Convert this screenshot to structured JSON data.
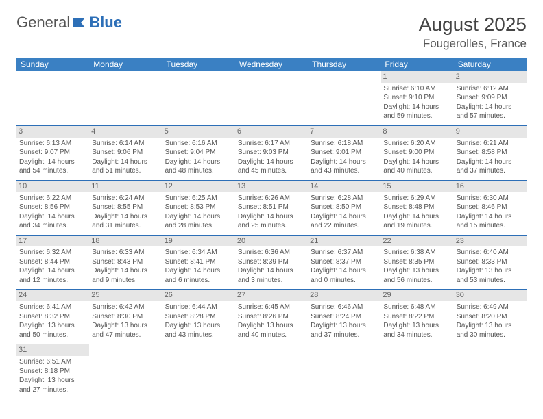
{
  "logo": {
    "part1": "General",
    "part2": "Blue"
  },
  "header": {
    "month": "August 2025",
    "location": "Fougerolles, France"
  },
  "colors": {
    "brand": "#3a80c3",
    "rule": "#2d6fb7",
    "daybg": "#e6e6e6",
    "text": "#555"
  },
  "dayNames": [
    "Sunday",
    "Monday",
    "Tuesday",
    "Wednesday",
    "Thursday",
    "Friday",
    "Saturday"
  ],
  "weeks": [
    [
      {
        "empty": true
      },
      {
        "empty": true
      },
      {
        "empty": true
      },
      {
        "empty": true
      },
      {
        "empty": true
      },
      {
        "day": "1",
        "sunrise": "Sunrise: 6:10 AM",
        "sunset": "Sunset: 9:10 PM",
        "day1": "Daylight: 14 hours",
        "day2": "and 59 minutes."
      },
      {
        "day": "2",
        "sunrise": "Sunrise: 6:12 AM",
        "sunset": "Sunset: 9:09 PM",
        "day1": "Daylight: 14 hours",
        "day2": "and 57 minutes."
      }
    ],
    [
      {
        "day": "3",
        "sunrise": "Sunrise: 6:13 AM",
        "sunset": "Sunset: 9:07 PM",
        "day1": "Daylight: 14 hours",
        "day2": "and 54 minutes."
      },
      {
        "day": "4",
        "sunrise": "Sunrise: 6:14 AM",
        "sunset": "Sunset: 9:06 PM",
        "day1": "Daylight: 14 hours",
        "day2": "and 51 minutes."
      },
      {
        "day": "5",
        "sunrise": "Sunrise: 6:16 AM",
        "sunset": "Sunset: 9:04 PM",
        "day1": "Daylight: 14 hours",
        "day2": "and 48 minutes."
      },
      {
        "day": "6",
        "sunrise": "Sunrise: 6:17 AM",
        "sunset": "Sunset: 9:03 PM",
        "day1": "Daylight: 14 hours",
        "day2": "and 45 minutes."
      },
      {
        "day": "7",
        "sunrise": "Sunrise: 6:18 AM",
        "sunset": "Sunset: 9:01 PM",
        "day1": "Daylight: 14 hours",
        "day2": "and 43 minutes."
      },
      {
        "day": "8",
        "sunrise": "Sunrise: 6:20 AM",
        "sunset": "Sunset: 9:00 PM",
        "day1": "Daylight: 14 hours",
        "day2": "and 40 minutes."
      },
      {
        "day": "9",
        "sunrise": "Sunrise: 6:21 AM",
        "sunset": "Sunset: 8:58 PM",
        "day1": "Daylight: 14 hours",
        "day2": "and 37 minutes."
      }
    ],
    [
      {
        "day": "10",
        "sunrise": "Sunrise: 6:22 AM",
        "sunset": "Sunset: 8:56 PM",
        "day1": "Daylight: 14 hours",
        "day2": "and 34 minutes."
      },
      {
        "day": "11",
        "sunrise": "Sunrise: 6:24 AM",
        "sunset": "Sunset: 8:55 PM",
        "day1": "Daylight: 14 hours",
        "day2": "and 31 minutes."
      },
      {
        "day": "12",
        "sunrise": "Sunrise: 6:25 AM",
        "sunset": "Sunset: 8:53 PM",
        "day1": "Daylight: 14 hours",
        "day2": "and 28 minutes."
      },
      {
        "day": "13",
        "sunrise": "Sunrise: 6:26 AM",
        "sunset": "Sunset: 8:51 PM",
        "day1": "Daylight: 14 hours",
        "day2": "and 25 minutes."
      },
      {
        "day": "14",
        "sunrise": "Sunrise: 6:28 AM",
        "sunset": "Sunset: 8:50 PM",
        "day1": "Daylight: 14 hours",
        "day2": "and 22 minutes."
      },
      {
        "day": "15",
        "sunrise": "Sunrise: 6:29 AM",
        "sunset": "Sunset: 8:48 PM",
        "day1": "Daylight: 14 hours",
        "day2": "and 19 minutes."
      },
      {
        "day": "16",
        "sunrise": "Sunrise: 6:30 AM",
        "sunset": "Sunset: 8:46 PM",
        "day1": "Daylight: 14 hours",
        "day2": "and 15 minutes."
      }
    ],
    [
      {
        "day": "17",
        "sunrise": "Sunrise: 6:32 AM",
        "sunset": "Sunset: 8:44 PM",
        "day1": "Daylight: 14 hours",
        "day2": "and 12 minutes."
      },
      {
        "day": "18",
        "sunrise": "Sunrise: 6:33 AM",
        "sunset": "Sunset: 8:43 PM",
        "day1": "Daylight: 14 hours",
        "day2": "and 9 minutes."
      },
      {
        "day": "19",
        "sunrise": "Sunrise: 6:34 AM",
        "sunset": "Sunset: 8:41 PM",
        "day1": "Daylight: 14 hours",
        "day2": "and 6 minutes."
      },
      {
        "day": "20",
        "sunrise": "Sunrise: 6:36 AM",
        "sunset": "Sunset: 8:39 PM",
        "day1": "Daylight: 14 hours",
        "day2": "and 3 minutes."
      },
      {
        "day": "21",
        "sunrise": "Sunrise: 6:37 AM",
        "sunset": "Sunset: 8:37 PM",
        "day1": "Daylight: 14 hours",
        "day2": "and 0 minutes."
      },
      {
        "day": "22",
        "sunrise": "Sunrise: 6:38 AM",
        "sunset": "Sunset: 8:35 PM",
        "day1": "Daylight: 13 hours",
        "day2": "and 56 minutes."
      },
      {
        "day": "23",
        "sunrise": "Sunrise: 6:40 AM",
        "sunset": "Sunset: 8:33 PM",
        "day1": "Daylight: 13 hours",
        "day2": "and 53 minutes."
      }
    ],
    [
      {
        "day": "24",
        "sunrise": "Sunrise: 6:41 AM",
        "sunset": "Sunset: 8:32 PM",
        "day1": "Daylight: 13 hours",
        "day2": "and 50 minutes."
      },
      {
        "day": "25",
        "sunrise": "Sunrise: 6:42 AM",
        "sunset": "Sunset: 8:30 PM",
        "day1": "Daylight: 13 hours",
        "day2": "and 47 minutes."
      },
      {
        "day": "26",
        "sunrise": "Sunrise: 6:44 AM",
        "sunset": "Sunset: 8:28 PM",
        "day1": "Daylight: 13 hours",
        "day2": "and 43 minutes."
      },
      {
        "day": "27",
        "sunrise": "Sunrise: 6:45 AM",
        "sunset": "Sunset: 8:26 PM",
        "day1": "Daylight: 13 hours",
        "day2": "and 40 minutes."
      },
      {
        "day": "28",
        "sunrise": "Sunrise: 6:46 AM",
        "sunset": "Sunset: 8:24 PM",
        "day1": "Daylight: 13 hours",
        "day2": "and 37 minutes."
      },
      {
        "day": "29",
        "sunrise": "Sunrise: 6:48 AM",
        "sunset": "Sunset: 8:22 PM",
        "day1": "Daylight: 13 hours",
        "day2": "and 34 minutes."
      },
      {
        "day": "30",
        "sunrise": "Sunrise: 6:49 AM",
        "sunset": "Sunset: 8:20 PM",
        "day1": "Daylight: 13 hours",
        "day2": "and 30 minutes."
      }
    ],
    [
      {
        "day": "31",
        "sunrise": "Sunrise: 6:51 AM",
        "sunset": "Sunset: 8:18 PM",
        "day1": "Daylight: 13 hours",
        "day2": "and 27 minutes."
      },
      {
        "empty": true
      },
      {
        "empty": true
      },
      {
        "empty": true
      },
      {
        "empty": true
      },
      {
        "empty": true
      },
      {
        "empty": true
      }
    ]
  ]
}
